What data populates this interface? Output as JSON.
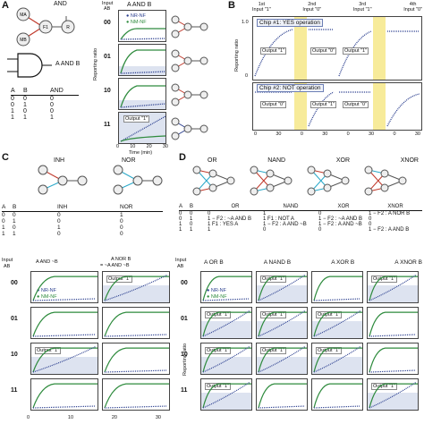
{
  "panelA": {
    "letter": "A",
    "gate_title": "AND",
    "input_header": "Input",
    "input_sub": "AB",
    "chart_title": "A AND B",
    "legend": [
      "NR-NF",
      "NM-NF"
    ],
    "rows": [
      "00",
      "01",
      "10",
      "11"
    ],
    "output_label": "Output \"1\"",
    "ylabel": "Reporting ratio",
    "xlabel": "Time (min)",
    "xticks": [
      "0",
      "10",
      "20",
      "30"
    ],
    "gate_expr": "A AND B",
    "nodes": {
      "ma": "MA",
      "mb": "MB",
      "f1": "F1",
      "r": "R"
    },
    "truth_header": [
      "A",
      "B",
      "AND"
    ],
    "truth_rows": [
      [
        "0",
        "0",
        "0"
      ],
      [
        "0",
        "1",
        "0"
      ],
      [
        "1",
        "0",
        "0"
      ],
      [
        "1",
        "1",
        "1"
      ]
    ]
  },
  "panelB": {
    "letter": "B",
    "headers": [
      [
        "1st",
        "Input \"1\""
      ],
      [
        "2nd",
        "Input \"0\""
      ],
      [
        "3rd",
        "Input \"1\""
      ],
      [
        "4th",
        "Input \"0\""
      ]
    ],
    "chip1": "Chip #1: YES operation",
    "chip2": "Chip #2: NOT operation",
    "outputs1": [
      "Output \"1\"",
      "Output \"0\"",
      "Output \"1\""
    ],
    "outputs2": [
      "Output \"0\"",
      "Output \"1\"",
      "Output \"0\""
    ],
    "ylabel": "Reporting ratio",
    "yticks": [
      "1.0",
      "0.5",
      "0"
    ],
    "xticks": [
      "0",
      "30",
      "0",
      "30",
      "0",
      "30",
      "0",
      "30"
    ]
  },
  "panelC": {
    "letter": "C",
    "gates": [
      "INH",
      "NOR"
    ],
    "truth_header": [
      "A",
      "B",
      "INH",
      "NOR"
    ],
    "truth_rows": [
      [
        "0",
        "0",
        "0",
        "1"
      ],
      [
        "0",
        "1",
        "0",
        "0"
      ],
      [
        "1",
        "0",
        "1",
        "0"
      ],
      [
        "1",
        "1",
        "0",
        "0"
      ]
    ],
    "input_header": "Input",
    "input_sub": "AB",
    "col_titles": [
      "A AND ~B",
      "A NOR B"
    ],
    "col_sub": "= ~A AND ~B",
    "legend": [
      "NR-NF",
      "NM-NF"
    ],
    "rows": [
      "00",
      "01",
      "10",
      "11"
    ],
    "output_label": "Output \"1\"",
    "xticks": [
      "0",
      "10",
      "20",
      "30"
    ],
    "xlabel": "Time (min)"
  },
  "panelD": {
    "letter": "D",
    "gates": [
      "OR",
      "NAND",
      "XOR",
      "XNOR"
    ],
    "truth_header": [
      "A",
      "B",
      "OR",
      "NAND",
      "XOR",
      "XNOR"
    ],
    "truth_rows": [
      [
        "0",
        "0",
        "0",
        "1",
        "0",
        "1 − F2 : A NOR B"
      ],
      [
        "0",
        "1",
        "1 − F2 : ~A AND B",
        "1 F1 : NOT A",
        "1 − F2 : ~A AND B",
        "0"
      ],
      [
        "1",
        "0",
        "1 F1 : YES A",
        "1 − F2 : A AND ~B",
        "1 − F2 : A AND ~B",
        "0"
      ],
      [
        "1",
        "1",
        "1",
        "0",
        "0",
        "1 − F2 : A AND B"
      ]
    ],
    "input_header": "Input",
    "input_sub": "AB",
    "col_titles": [
      "A OR B",
      "A NAND B",
      "A XOR B",
      "A XNOR B"
    ],
    "legend": [
      "NR-NF",
      "NM-NF"
    ],
    "rows": [
      "00",
      "01",
      "10",
      "11"
    ],
    "output_label": "Output \"1\"",
    "ylabel": "Reporting ratio",
    "xticks": [
      "0",
      "10",
      "20",
      "30"
    ],
    "xlabel": "Time (min)"
  },
  "colors": {
    "blue": "#2b3f8f",
    "green": "#2e8b3d",
    "shade": "#dde3f0",
    "yellow": "#f7eb9a",
    "red": "#c0392b",
    "cyan": "#2aa8c9"
  }
}
